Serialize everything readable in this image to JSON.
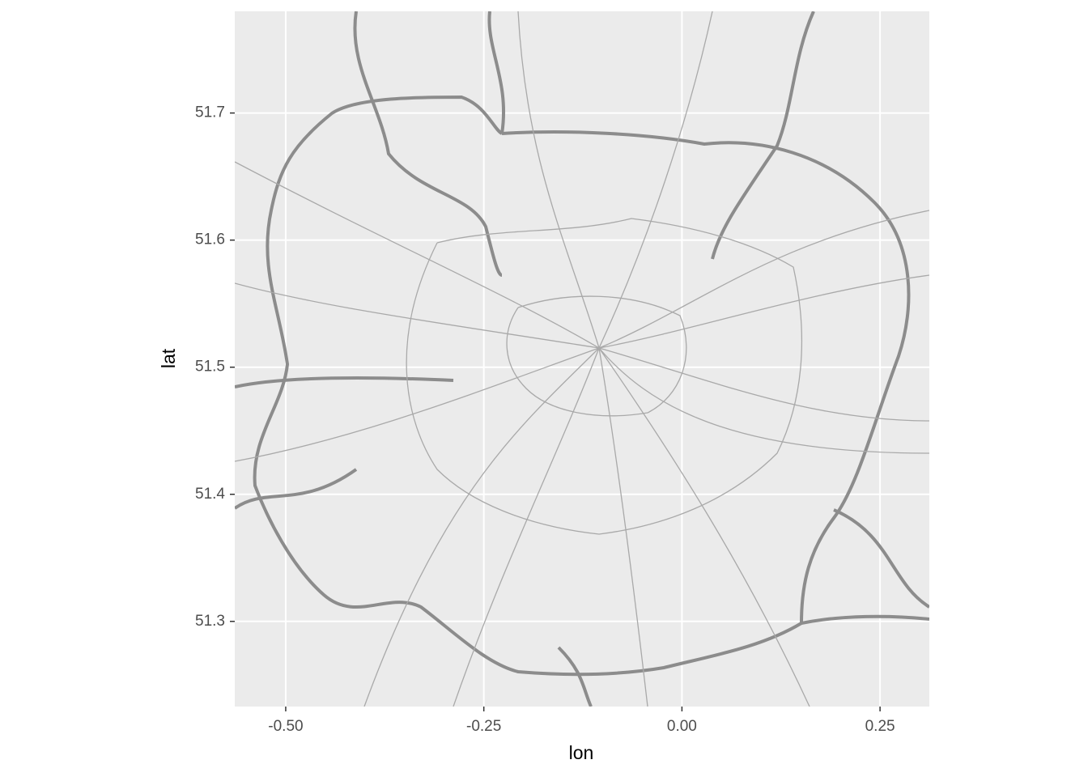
{
  "chart_data": {
    "type": "map",
    "x_label": "lon",
    "y_label": "lat",
    "xlim": [
      -0.5643,
      0.3122
    ],
    "ylim": [
      51.233,
      51.78
    ],
    "xticks": [
      {
        "value": -0.5,
        "label": "-0.50"
      },
      {
        "value": -0.25,
        "label": "-0.25"
      },
      {
        "value": 0,
        "label": "0.00"
      },
      0.25
    ],
    "yticks": [
      51.3,
      51.4,
      51.5,
      51.6,
      51.7
    ],
    "grid": true
  }
}
